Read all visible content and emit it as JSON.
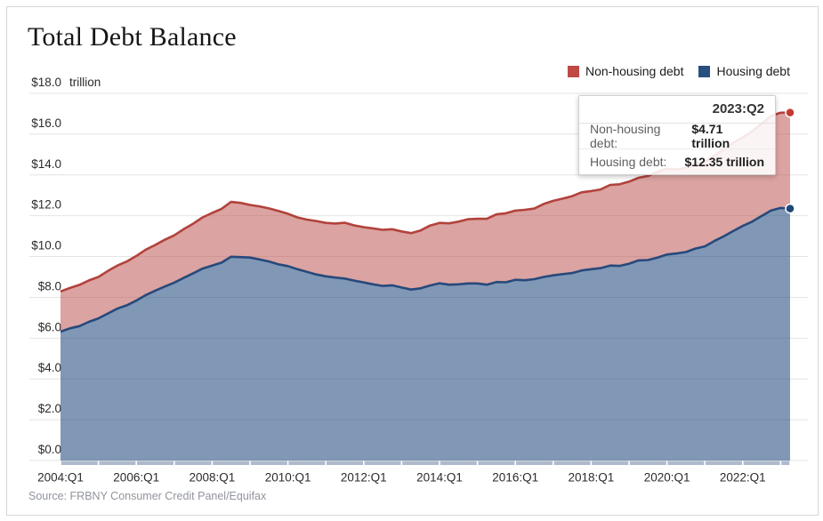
{
  "title": "Total Debt Balance",
  "legend": {
    "items": [
      {
        "label": "Non-housing debt",
        "color": "#bf4a45"
      },
      {
        "label": "Housing debt",
        "color": "#28507f"
      }
    ]
  },
  "tooltip": {
    "header": "2023:Q2",
    "rows": [
      {
        "label": "Non-housing debt:",
        "value": "$4.71 trillion"
      },
      {
        "label": "Housing debt:",
        "value": "$12.35 trillion"
      }
    ]
  },
  "source": "Source: FRBNY Consumer Credit Panel/Equifax",
  "chart_data": {
    "type": "area",
    "stacked": true,
    "title": "Total Debt Balance",
    "y_unit_label": "trillion",
    "ylim": [
      0,
      18
    ],
    "y_tick_labels": [
      "$0.0",
      "$2.0",
      "$4.0",
      "$6.0",
      "$8.0",
      "$10.0",
      "$12.0",
      "$14.0",
      "$16.0",
      "$18.0"
    ],
    "x_tick_labels": [
      "2004:Q1",
      "2006:Q1",
      "2008:Q1",
      "2010:Q1",
      "2012:Q1",
      "2014:Q1",
      "2016:Q1",
      "2018:Q1",
      "2020:Q1",
      "2022:Q1"
    ],
    "x_start": "2004:Q1",
    "x_end": "2023:Q2",
    "frequency": "quarterly",
    "grid": "horizontal",
    "legend_position": "top-right",
    "grid_color": "#e4e4e4",
    "axis_band_color": "#aebacc",
    "highlighted_point": {
      "x": "2023:Q2",
      "non_housing": 4.71,
      "housing": 12.35,
      "total": 17.06
    },
    "series": {
      "housing": {
        "name": "Housing debt",
        "line_color": "#27497b",
        "fill_color": "rgba(32,74,126,0.57)",
        "dot_color": "#1e4877",
        "values": [
          6.32,
          6.48,
          6.59,
          6.8,
          6.97,
          7.21,
          7.45,
          7.61,
          7.84,
          8.11,
          8.33,
          8.53,
          8.72,
          8.95,
          9.18,
          9.41,
          9.56,
          9.7,
          9.99,
          9.97,
          9.95,
          9.86,
          9.76,
          9.62,
          9.53,
          9.38,
          9.25,
          9.12,
          9.03,
          8.97,
          8.92,
          8.82,
          8.73,
          8.64,
          8.56,
          8.59,
          8.48,
          8.38,
          8.44,
          8.58,
          8.69,
          8.62,
          8.64,
          8.68,
          8.68,
          8.62,
          8.75,
          8.74,
          8.86,
          8.84,
          8.89,
          9.0,
          9.08,
          9.14,
          9.19,
          9.32,
          9.38,
          9.43,
          9.56,
          9.54,
          9.65,
          9.81,
          9.83,
          9.95,
          10.1,
          10.15,
          10.22,
          10.39,
          10.5,
          10.76,
          10.99,
          11.25,
          11.5,
          11.71,
          11.99,
          12.26,
          12.38,
          12.35
        ]
      },
      "non_housing": {
        "name": "Non-housing debt",
        "line_color": "#b2423c",
        "fill_color": "rgba(183,72,68,0.5)",
        "dot_color": "#c23a30",
        "values": [
          1.97,
          1.98,
          2.02,
          2.03,
          2.03,
          2.08,
          2.11,
          2.15,
          2.19,
          2.23,
          2.24,
          2.29,
          2.32,
          2.39,
          2.43,
          2.51,
          2.58,
          2.64,
          2.69,
          2.66,
          2.58,
          2.6,
          2.6,
          2.62,
          2.57,
          2.54,
          2.56,
          2.62,
          2.62,
          2.65,
          2.74,
          2.71,
          2.71,
          2.74,
          2.75,
          2.75,
          2.75,
          2.77,
          2.84,
          2.94,
          2.96,
          3.01,
          3.07,
          3.15,
          3.17,
          3.23,
          3.32,
          3.38,
          3.39,
          3.45,
          3.46,
          3.58,
          3.65,
          3.7,
          3.77,
          3.83,
          3.83,
          3.86,
          3.95,
          4.0,
          4.02,
          4.05,
          4.12,
          4.2,
          4.2,
          4.12,
          4.13,
          4.17,
          4.14,
          4.2,
          4.25,
          4.33,
          4.34,
          4.44,
          4.52,
          4.64,
          4.67,
          4.71
        ]
      }
    }
  }
}
